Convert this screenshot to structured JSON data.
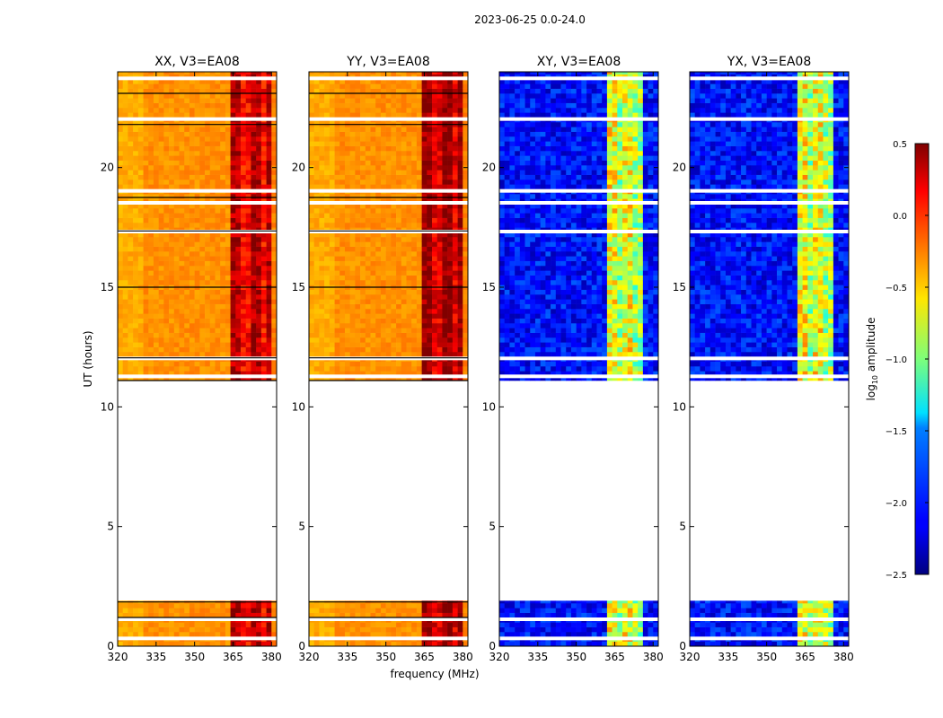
{
  "figure": {
    "suptitle": "2023-06-25 0.0-24.0",
    "shared_xlabel": "frequency (MHz)",
    "shared_ylabel": "UT (hours)"
  },
  "chart_data": [
    {
      "type": "heatmap",
      "title": "XX, V3=EA08",
      "polarization": "XX",
      "xlim": [
        320,
        382
      ],
      "ylim": [
        0,
        24
      ],
      "xticks": [
        320,
        335,
        350,
        365,
        380
      ],
      "yticks": [
        0,
        5,
        10,
        15,
        20
      ],
      "data_time_ranges": [
        [
          0.0,
          1.9
        ],
        [
          11.1,
          24.0
        ]
      ],
      "background_level": -0.3,
      "rfi_band_mhz": [
        364,
        378
      ],
      "rfi_level": 0.2,
      "flagged_rows_ut": [
        0.3,
        1.1,
        11.25,
        12.0,
        17.3,
        18.5,
        19.0,
        22.0,
        23.7
      ]
    },
    {
      "type": "heatmap",
      "title": "YY, V3=EA08",
      "polarization": "YY",
      "xlim": [
        320,
        382
      ],
      "ylim": [
        0,
        24
      ],
      "xticks": [
        320,
        335,
        350,
        365,
        380
      ],
      "yticks": [
        0,
        5,
        10,
        15,
        20
      ],
      "data_time_ranges": [
        [
          0.0,
          1.9
        ],
        [
          11.1,
          24.0
        ]
      ],
      "background_level": -0.3,
      "rfi_band_mhz": [
        364,
        378
      ],
      "rfi_level": 0.3,
      "flagged_rows_ut": [
        0.3,
        1.1,
        11.25,
        12.0,
        17.3,
        18.5,
        19.0,
        22.0,
        23.7
      ]
    },
    {
      "type": "heatmap",
      "title": "XY, V3=EA08",
      "polarization": "XY",
      "xlim": [
        320,
        382
      ],
      "ylim": [
        0,
        24
      ],
      "xticks": [
        320,
        335,
        350,
        365,
        380
      ],
      "yticks": [
        0,
        5,
        10,
        15,
        20
      ],
      "data_time_ranges": [
        [
          0.0,
          1.9
        ],
        [
          11.1,
          24.0
        ]
      ],
      "background_level": -2.1,
      "rfi_band_mhz": [
        361,
        375
      ],
      "rfi_level": -0.8,
      "flagged_rows_ut": [
        0.3,
        1.1,
        11.25,
        12.0,
        17.3,
        18.5,
        19.0,
        22.0,
        23.7
      ]
    },
    {
      "type": "heatmap",
      "title": "YX, V3=EA08",
      "polarization": "YX",
      "xlim": [
        320,
        382
      ],
      "ylim": [
        0,
        24
      ],
      "xticks": [
        320,
        335,
        350,
        365,
        380
      ],
      "yticks": [
        0,
        5,
        10,
        15,
        20
      ],
      "data_time_ranges": [
        [
          0.0,
          1.9
        ],
        [
          11.1,
          24.0
        ]
      ],
      "background_level": -2.1,
      "rfi_band_mhz": [
        361,
        375
      ],
      "rfi_level": -0.8,
      "flagged_rows_ut": [
        0.3,
        1.1,
        11.25,
        12.0,
        17.3,
        18.5,
        19.0,
        22.0,
        23.7
      ]
    }
  ],
  "colorbar": {
    "label": "log10 amplitude",
    "label_main": "log",
    "label_sub": "10",
    "label_rest": " amplitude",
    "vmin": -2.5,
    "vmax": 0.5,
    "ticks": [
      "0.5",
      "0.0",
      "−0.5",
      "−1.0",
      "−1.5",
      "−2.0",
      "−2.5"
    ],
    "tick_values": [
      0.5,
      0.0,
      -0.5,
      -1.0,
      -1.5,
      -2.0,
      -2.5
    ],
    "colormap": "jet"
  }
}
